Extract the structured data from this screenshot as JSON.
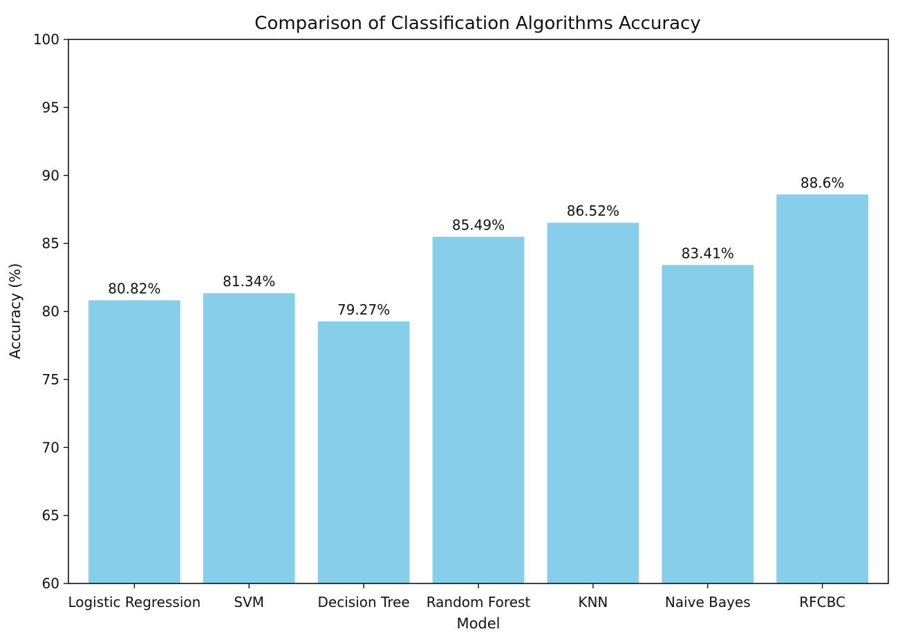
{
  "chart_data": {
    "type": "bar",
    "title": "Comparison of Classification Algorithms Accuracy",
    "xlabel": "Model",
    "ylabel": "Accuracy (%)",
    "categories": [
      "Logistic Regression",
      "SVM",
      "Decision Tree",
      "Random Forest",
      "KNN",
      "Naive Bayes",
      "RFCBC"
    ],
    "values": [
      80.82,
      81.34,
      79.27,
      85.49,
      86.52,
      83.41,
      88.6
    ],
    "value_labels": [
      "80.82%",
      "81.34%",
      "79.27%",
      "85.49%",
      "86.52%",
      "83.41%",
      "88.6%"
    ],
    "ylim": [
      60,
      100
    ],
    "yticks": [
      60,
      65,
      70,
      75,
      80,
      85,
      90,
      95,
      100
    ],
    "grid": false,
    "legend": "none",
    "bar_color": "#87ceeb"
  }
}
